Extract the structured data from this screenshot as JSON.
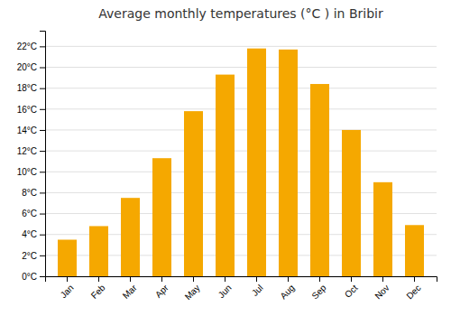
{
  "chart_data": {
    "type": "bar",
    "title": "Average monthly temperatures (°C ) in Bribir",
    "categories": [
      "Jan",
      "Feb",
      "Mar",
      "Apr",
      "May",
      "Jun",
      "Jul",
      "Aug",
      "Sep",
      "Oct",
      "Nov",
      "Dec"
    ],
    "values": [
      3.5,
      4.8,
      7.5,
      11.3,
      15.8,
      19.3,
      21.8,
      21.7,
      18.4,
      14.0,
      9.0,
      4.9
    ],
    "color": "#F5A800",
    "ylim": [
      0,
      23.5
    ],
    "yticks": [
      {
        "value": 0,
        "label": "0°C"
      },
      {
        "value": 2,
        "label": "2°C"
      },
      {
        "value": 4,
        "label": "4°C"
      },
      {
        "value": 6,
        "label": "6°C"
      },
      {
        "value": 8,
        "label": "8°C"
      },
      {
        "value": 10,
        "label": "10°C"
      },
      {
        "value": 12,
        "label": "12°C"
      },
      {
        "value": 14,
        "label": "14°C"
      },
      {
        "value": 16,
        "label": "16°C"
      },
      {
        "value": 18,
        "label": "18°C"
      },
      {
        "value": 20,
        "label": "20°C"
      },
      {
        "value": 22,
        "label": "22°C"
      }
    ],
    "grid": true
  }
}
